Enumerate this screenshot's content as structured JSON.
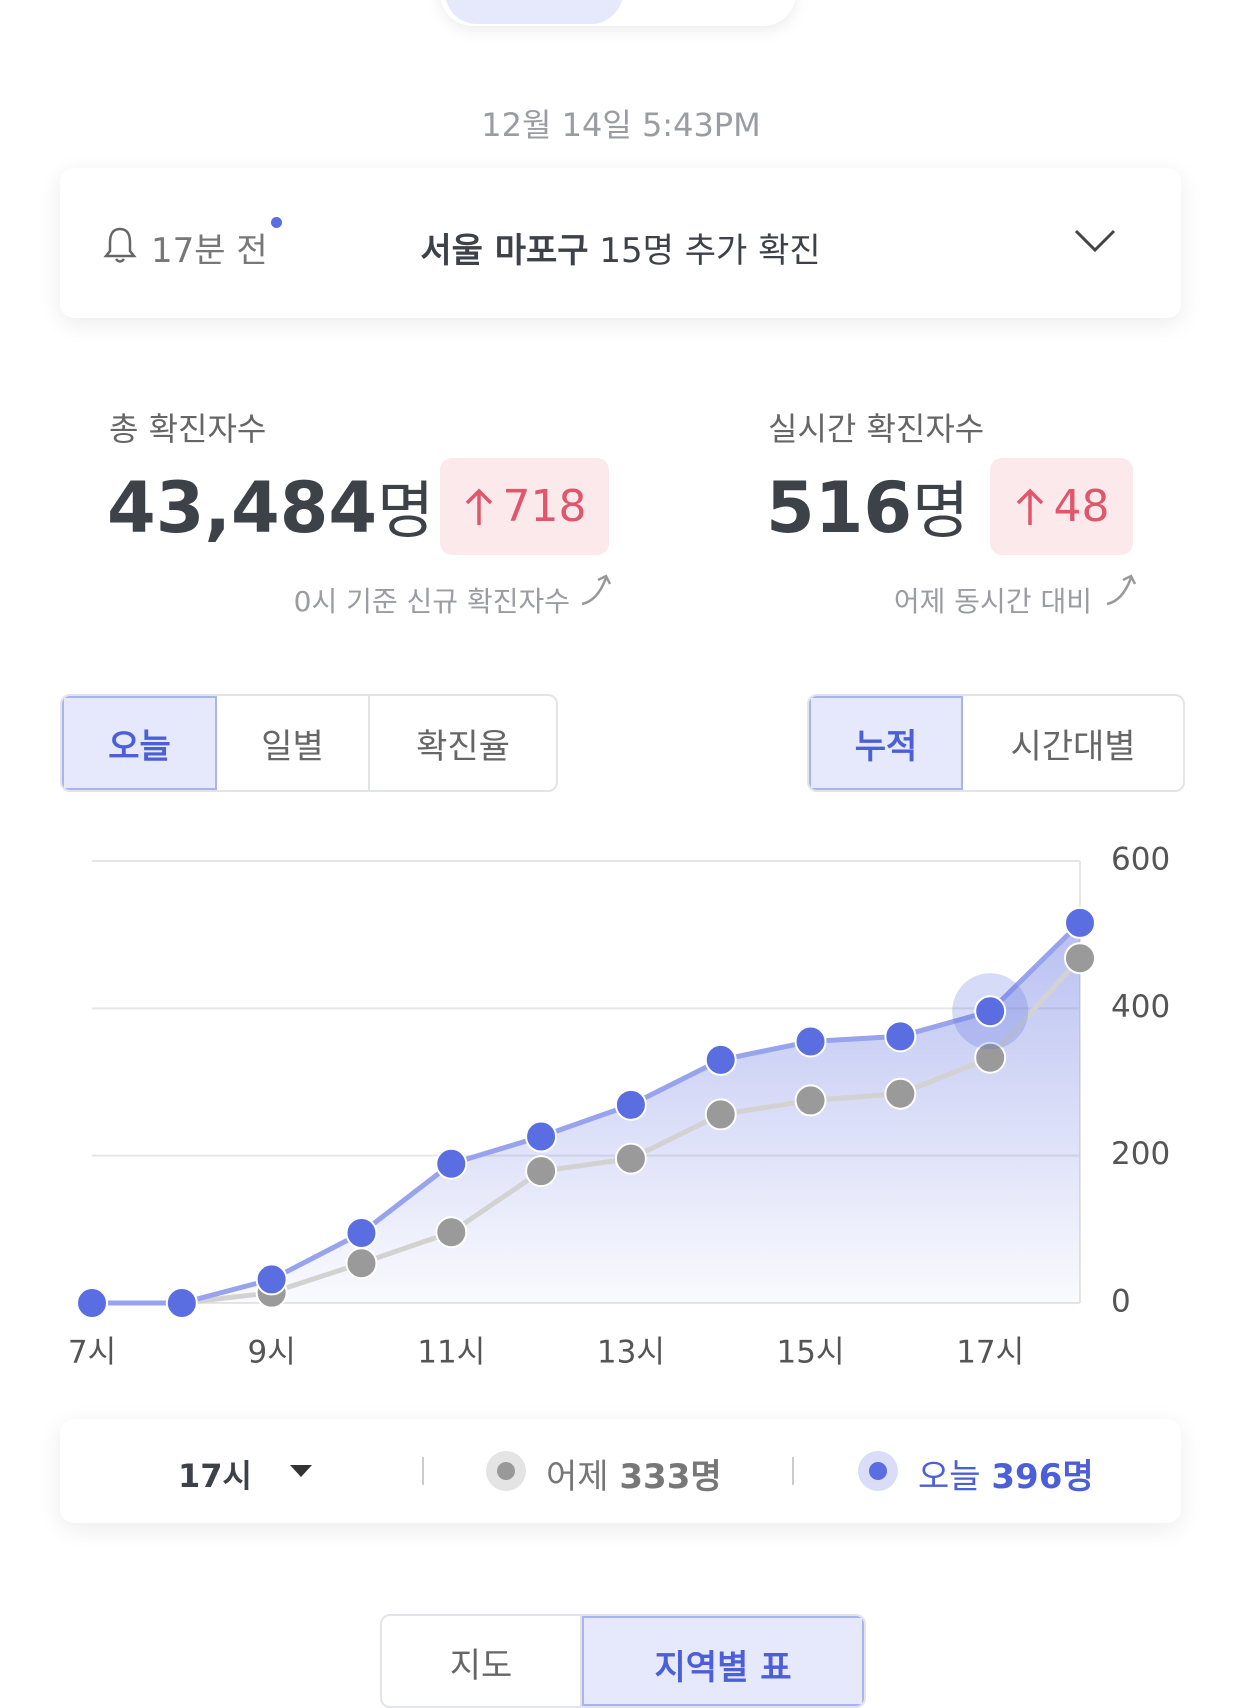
{
  "timestamp": "12월 14일 5:43PM",
  "notification": {
    "time": "17분 전",
    "location": "서울 마포구",
    "message": "15명 추가 확진"
  },
  "stats": [
    {
      "label": "총 확진자수",
      "value": "43,484",
      "unit": "명",
      "change": "718",
      "note": "0시 기준 신규 확진자수"
    },
    {
      "label": "실시간 확진자수",
      "value": "516",
      "unit": "명",
      "change": "48",
      "note": "어제 동시간 대비"
    }
  ],
  "view_tabs": [
    "오늘",
    "일별",
    "확진율"
  ],
  "mode_tabs": [
    "누적",
    "시간대별"
  ],
  "chart_data": {
    "type": "line",
    "categories": [
      "7시",
      null,
      "9시",
      null,
      "11시",
      null,
      "13시",
      null,
      "15시",
      null,
      "17시",
      null
    ],
    "series": [
      {
        "name": "오늘",
        "color": "#5b6ee1",
        "values": [
          0,
          0,
          32,
          95,
          189,
          226,
          269,
          330,
          355,
          362,
          396,
          516
        ]
      },
      {
        "name": "어제",
        "color": "#9a9a9a",
        "values": [
          0,
          0,
          14,
          54,
          96,
          179,
          196,
          256,
          275,
          284,
          333,
          468
        ]
      }
    ],
    "ylim": [
      0,
      600
    ],
    "yticks": [
      0,
      200,
      400,
      600
    ],
    "grid": true
  },
  "selection": {
    "hour": "17시",
    "yesterday": "333명",
    "today": "396명"
  },
  "bottom_tabs": [
    "지도",
    "지역별 표"
  ]
}
